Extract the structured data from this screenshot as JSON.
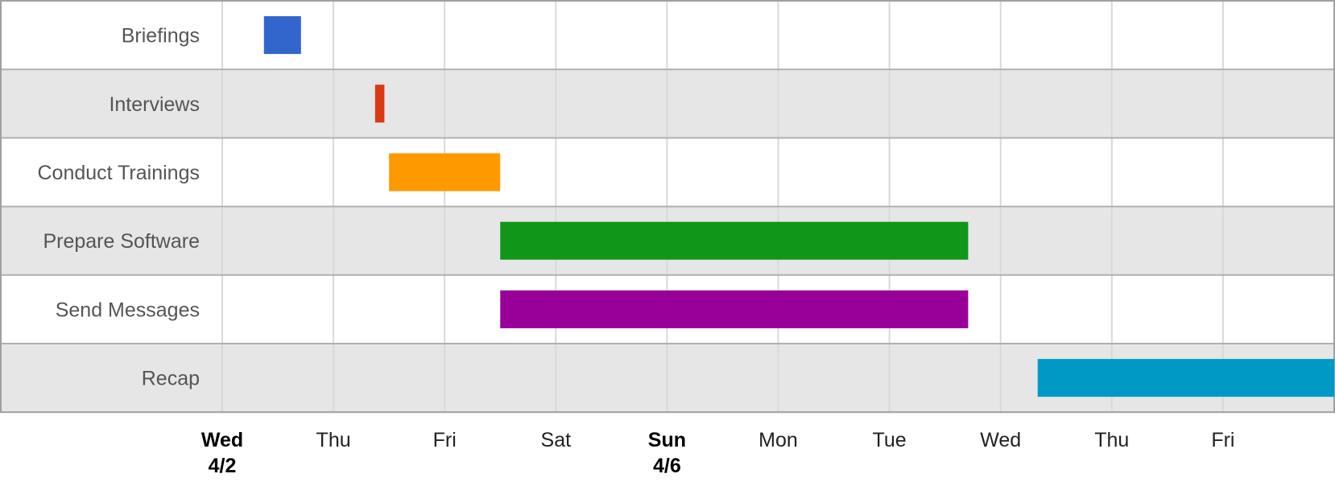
{
  "chart_data": {
    "type": "gantt",
    "x_range": [
      "2025-04-02",
      "2025-04-12"
    ],
    "x_tick_labels": [
      {
        "date": "2025-04-02",
        "day": "Wed",
        "date_label": "4/2",
        "bold": true
      },
      {
        "date": "2025-04-03",
        "day": "Thu"
      },
      {
        "date": "2025-04-04",
        "day": "Fri"
      },
      {
        "date": "2025-04-05",
        "day": "Sat"
      },
      {
        "date": "2025-04-06",
        "day": "Sun",
        "date_label": "4/6",
        "bold": true
      },
      {
        "date": "2025-04-07",
        "day": "Mon"
      },
      {
        "date": "2025-04-08",
        "day": "Tue"
      },
      {
        "date": "2025-04-09",
        "day": "Wed"
      },
      {
        "date": "2025-04-10",
        "day": "Thu"
      },
      {
        "date": "2025-04-11",
        "day": "Fri"
      }
    ],
    "tasks": [
      {
        "name": "Briefings",
        "start": "2025-04-02T09:00",
        "end": "2025-04-02T17:00",
        "color": "#3366cc"
      },
      {
        "name": "Interviews",
        "start": "2025-04-03T09:00",
        "end": "2025-04-03T11:00",
        "color": "#dc3912"
      },
      {
        "name": "Conduct Trainings",
        "start": "2025-04-03T12:00",
        "end": "2025-04-04T12:00",
        "color": "#ff9900"
      },
      {
        "name": "Prepare Software",
        "start": "2025-04-04T12:00",
        "end": "2025-04-08T17:00",
        "color": "#109618"
      },
      {
        "name": "Send Messages",
        "start": "2025-04-04T12:00",
        "end": "2025-04-08T17:00",
        "color": "#990099"
      },
      {
        "name": "Recap",
        "start": "2025-04-09T08:00",
        "end": "2025-04-12T00:00",
        "color": "#0099c6"
      }
    ],
    "row_colors": [
      "#ffffff",
      "#e6e6e6"
    ],
    "grid": true
  }
}
